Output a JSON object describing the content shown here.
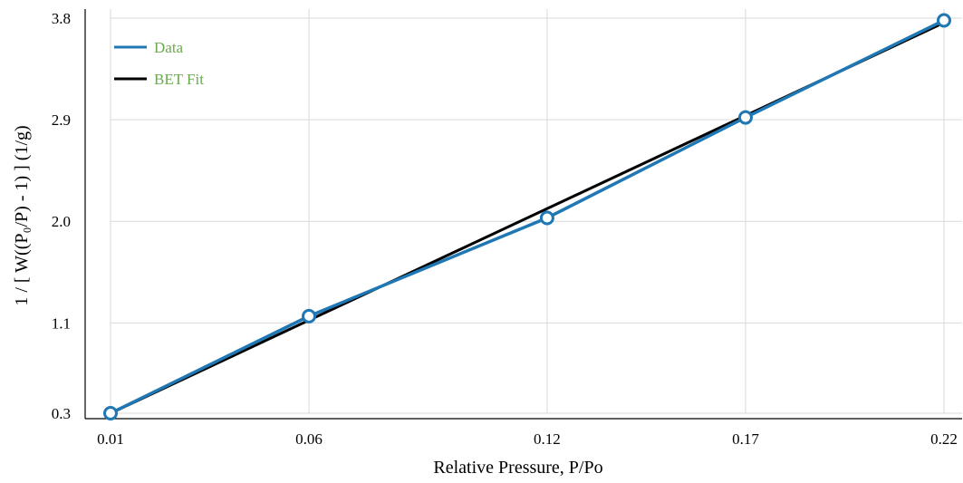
{
  "chart_data": {
    "type": "line",
    "title": "",
    "xlabel": "Relative Pressure, P/Po",
    "ylabel": "1 / [ W((P₀/P) - 1) ] (1/g)",
    "xlim": [
      0.01,
      0.22
    ],
    "ylim": [
      0.3,
      3.8
    ],
    "x_ticks": [
      "0.01",
      "0.06",
      "0.12",
      "0.17",
      "0.22"
    ],
    "y_ticks": [
      "0.3",
      "1.1",
      "2.0",
      "2.9",
      "3.8"
    ],
    "grid": true,
    "legend_position": "top-left",
    "series": [
      {
        "name": "Data",
        "color": "#1f77b4",
        "markers": true,
        "x": [
          0.01,
          0.06,
          0.12,
          0.17,
          0.22
        ],
        "y": [
          0.3,
          1.16,
          2.03,
          2.92,
          3.78
        ]
      },
      {
        "name": "BET Fit",
        "color": "#000000",
        "markers": false,
        "x": [
          0.01,
          0.22
        ],
        "y": [
          0.3,
          3.76
        ]
      }
    ],
    "legend_text_color": "#6aaa4f"
  }
}
